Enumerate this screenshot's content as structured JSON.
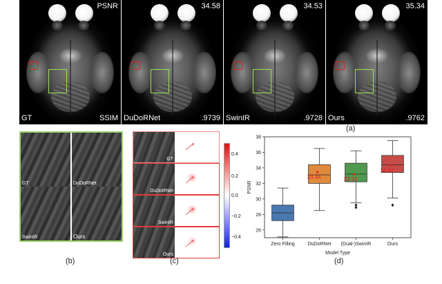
{
  "row_a": {
    "panels": [
      {
        "name": "GT",
        "top_right": "PSNR",
        "bottom_right": "SSIM"
      },
      {
        "name": "DuDoRNet",
        "top_right": "34.58",
        "bottom_right": ".9739"
      },
      {
        "name": "SwinIR",
        "top_right": "34.53",
        "bottom_right": ".9728"
      },
      {
        "name": "Ours",
        "top_right": "35.34",
        "bottom_right": ".9762"
      }
    ],
    "caption": "(a)"
  },
  "row_b": {
    "labels": [
      "GT",
      "DuDoRNet",
      "SwinIR",
      "Ours"
    ],
    "caption": "(b)"
  },
  "row_c": {
    "labels": [
      "GT",
      "DuDoRNet",
      "SwinIR",
      "Ours"
    ],
    "colorbar_ticks": [
      "0.4",
      "0.2",
      "0.0",
      "−0.2",
      "−0.4"
    ],
    "caption": "(c)"
  },
  "chart_data": {
    "type": "box",
    "xlabel": "Model Type",
    "ylabel": "PSNR",
    "ylim": [
      25,
      38
    ],
    "yticks": [
      26,
      28,
      30,
      32,
      34,
      36,
      38
    ],
    "categories": [
      "Zero Filling",
      "DuDoRNet",
      "(Dual-)SwinIR",
      "Ours"
    ],
    "colors": [
      "#4a78b0",
      "#e08a3c",
      "#4f9a4e",
      "#c94b47"
    ],
    "boxes": [
      {
        "whisker_low": 25.1,
        "q1": 27.2,
        "median": 28.2,
        "q3": 29.2,
        "whisker_high": 31.4,
        "mean": null,
        "outliers": []
      },
      {
        "whisker_low": 28.5,
        "q1": 32.0,
        "median": 33.1,
        "q3": 34.4,
        "whisker_high": 36.5,
        "mean": 33.44,
        "outliers": []
      },
      {
        "whisker_low": 29.5,
        "q1": 32.2,
        "median": 33.2,
        "q3": 34.6,
        "whisker_high": 36.2,
        "mean": 33.18,
        "outliers": [
          28.9,
          29.2
        ]
      },
      {
        "whisker_low": 30.1,
        "q1": 33.4,
        "median": 34.4,
        "q3": 35.6,
        "whisker_high": 37.5,
        "mean": 34.31,
        "outliers": [
          29.2
        ]
      }
    ],
    "annotations": [
      "33.44",
      "33.18",
      "34.31"
    ],
    "caption": "(d)"
  }
}
